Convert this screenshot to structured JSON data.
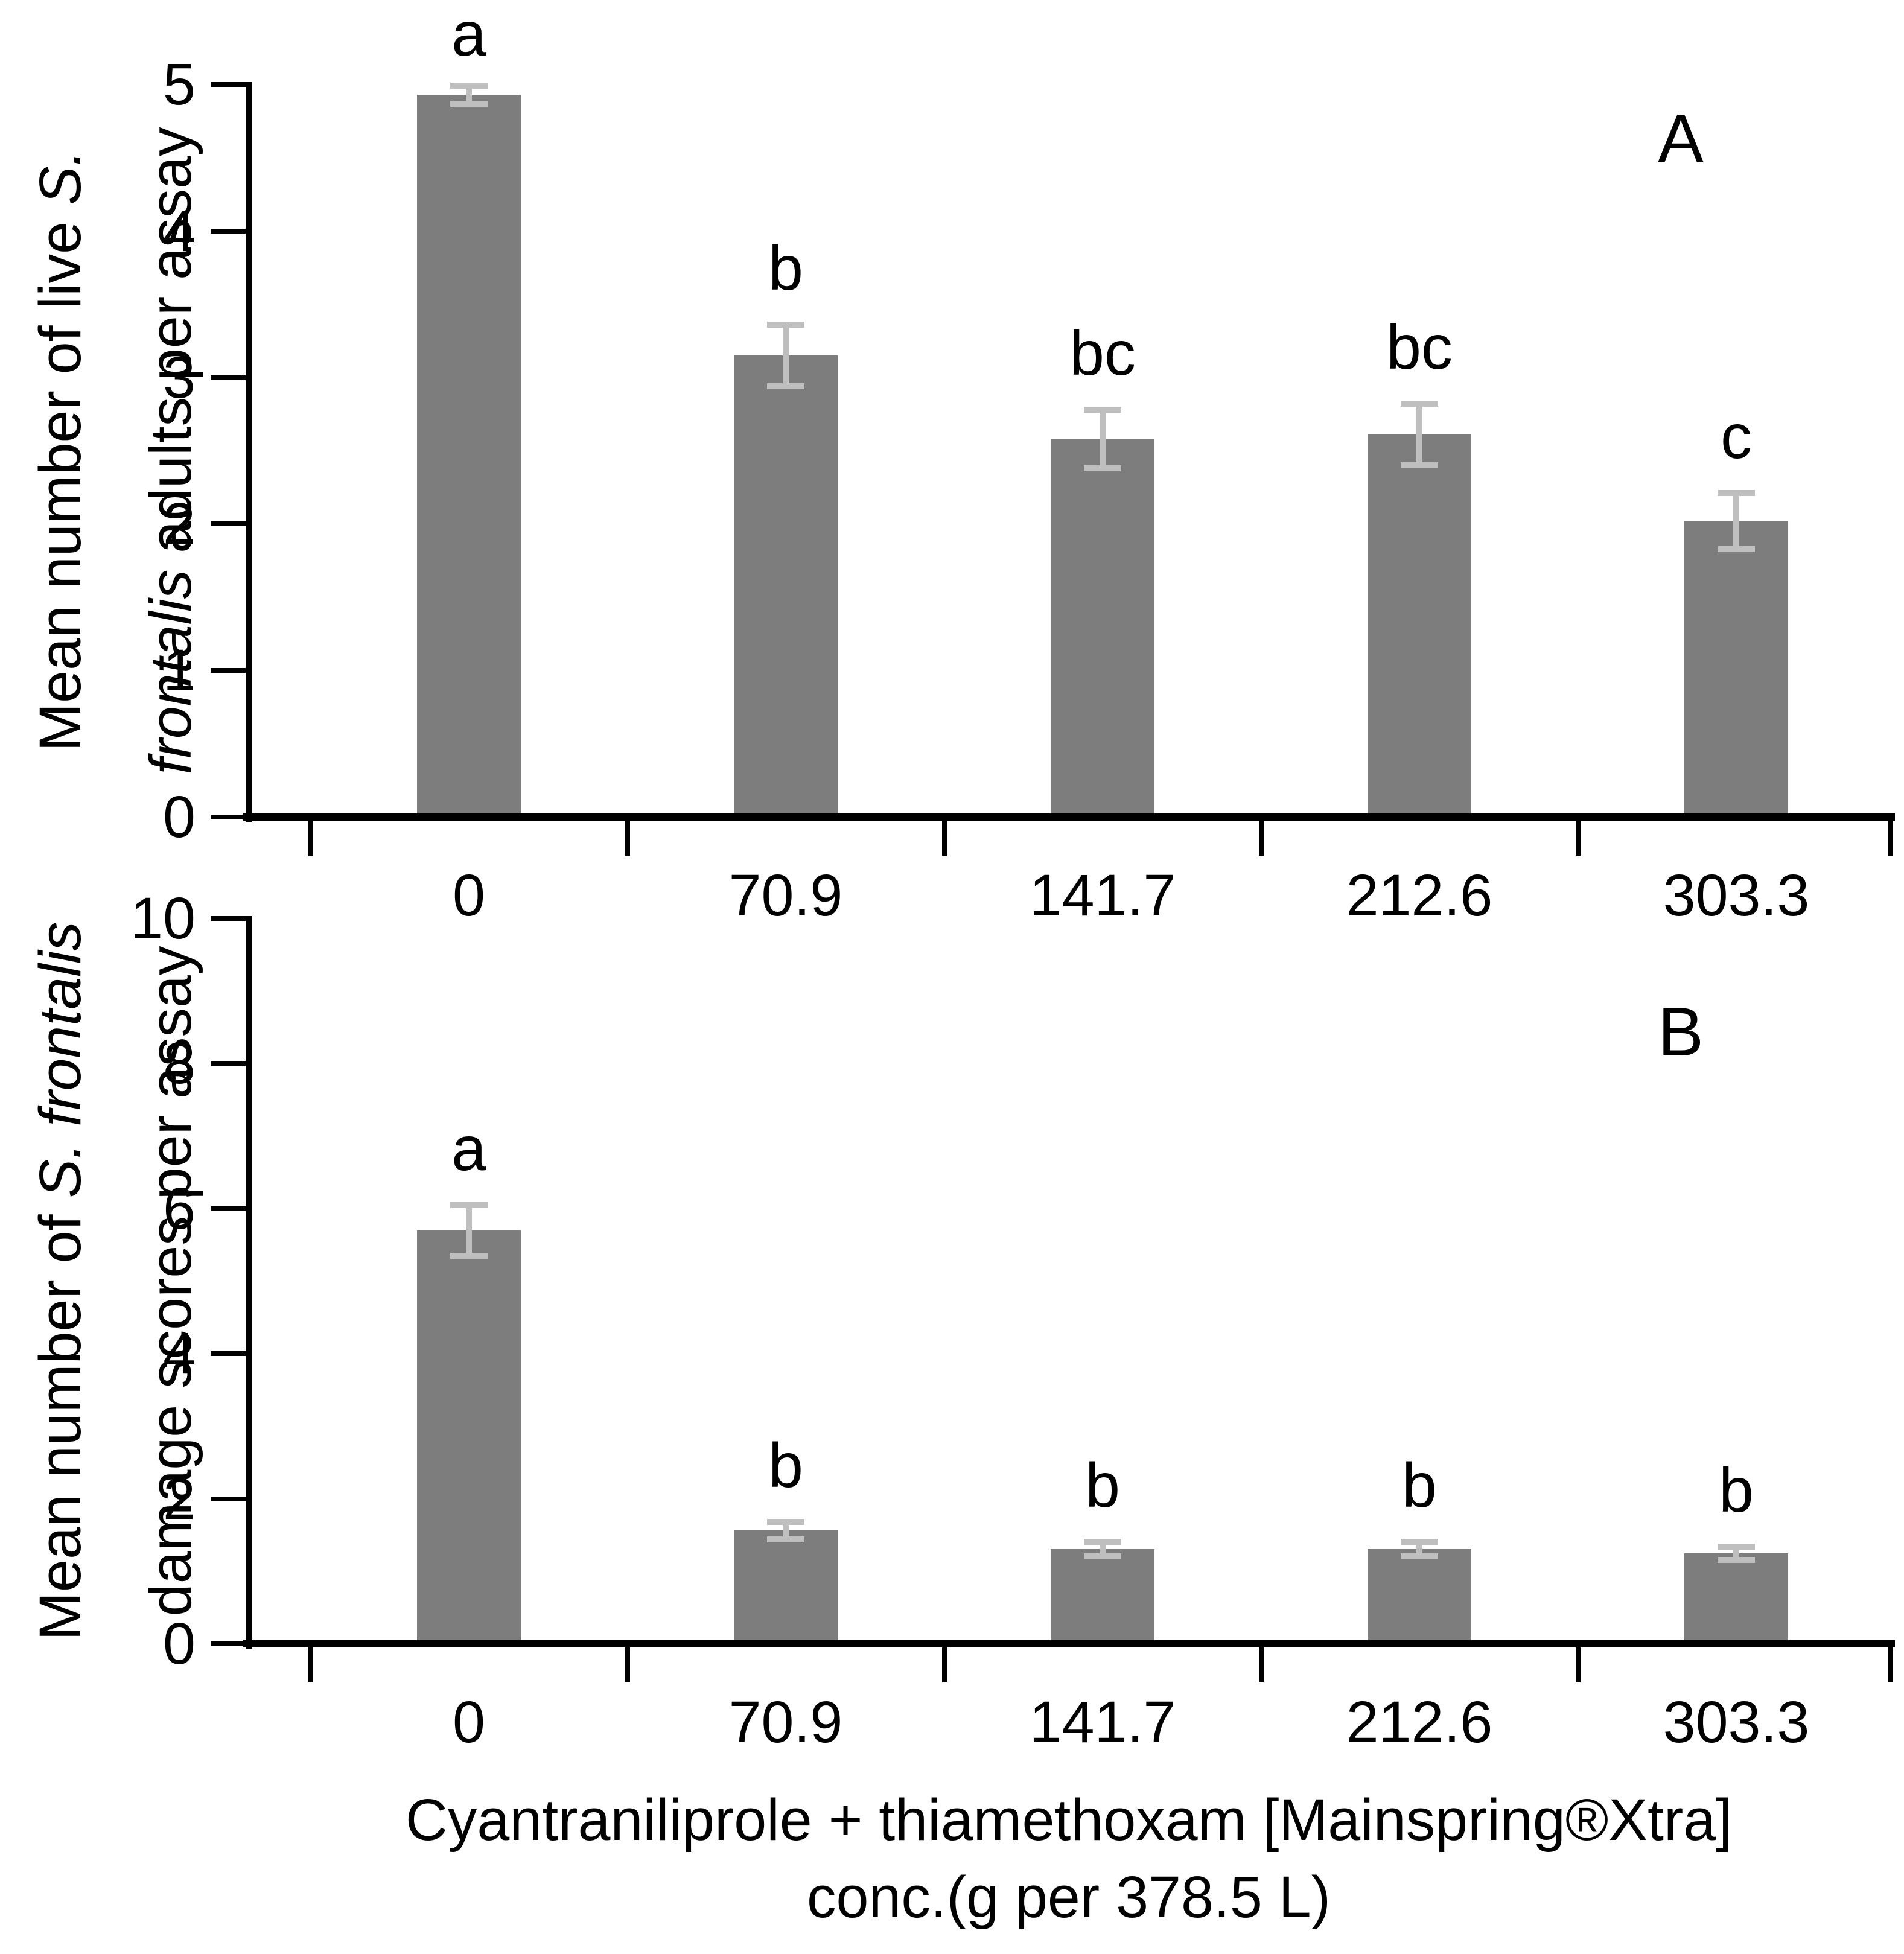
{
  "figure": {
    "background": "#ffffff",
    "bar_color": "#7d7d7d",
    "error_bar_color": "#bfbfbf",
    "axis_color": "#000000",
    "text_color": "#000000"
  },
  "x_axis": {
    "caption_line1": "Cyantraniliprole + thiamethoxam [Mainspring®Xtra]",
    "caption_line2": "conc.(g per 378.5 L)",
    "tick_labels": [
      "0",
      "70.9",
      "141.7",
      "212.6",
      "303.3"
    ]
  },
  "chart_data": [
    {
      "type": "bar",
      "panel_label": "A",
      "title": "",
      "xlabel": "Cyantraniliprole + thiamethoxam [Mainspring®Xtra] conc.(g per 378.5 L)",
      "ylabel": "Mean number of live S. frontalis adults per assay",
      "yl1_normal": "Mean number of live ",
      "yl1_italic": "S.",
      "yl2_italic": "frontalis",
      "yl2_normal": " adults per assay",
      "categories": [
        "0",
        "70.9",
        "141.7",
        "212.6",
        "303.3"
      ],
      "values": [
        4.93,
        3.15,
        2.58,
        2.61,
        2.02
      ],
      "errors": [
        0.06,
        0.21,
        0.2,
        0.21,
        0.19
      ],
      "sig_letters": [
        "a",
        "b",
        "bc",
        "bc",
        "c"
      ],
      "ylim": [
        0,
        5
      ],
      "yticks": [
        0,
        1,
        2,
        3,
        4,
        5
      ],
      "grid": "off",
      "legend": "none"
    },
    {
      "type": "bar",
      "panel_label": "B",
      "title": "",
      "xlabel": "Cyantraniliprole + thiamethoxam [Mainspring®Xtra] conc.(g per 378.5 L)",
      "ylabel": "Mean number of S. frontalis damage scores per assay",
      "yl1_normal": "Mean number of ",
      "yl1_italic": "S. frontalis",
      "yl2_italic": "",
      "yl2_normal": "damage scores per assay",
      "categories": [
        "0",
        "70.9",
        "141.7",
        "212.6",
        "303.3"
      ],
      "values": [
        5.7,
        1.56,
        1.31,
        1.31,
        1.25
      ],
      "errors": [
        0.35,
        0.12,
        0.1,
        0.1,
        0.09
      ],
      "sig_letters": [
        "a",
        "b",
        "b",
        "b",
        "b"
      ],
      "ylim": [
        0,
        10
      ],
      "yticks": [
        0,
        2,
        4,
        6,
        8,
        10
      ],
      "grid": "off",
      "legend": "none"
    }
  ]
}
